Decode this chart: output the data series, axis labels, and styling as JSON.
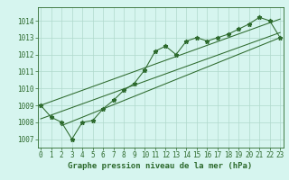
{
  "title": "Graphe pression niveau de la mer (hPa)",
  "x_values": [
    0,
    1,
    2,
    3,
    4,
    5,
    6,
    7,
    8,
    9,
    10,
    11,
    12,
    13,
    14,
    15,
    16,
    17,
    18,
    19,
    20,
    21,
    22,
    23
  ],
  "y_values": [
    1009.0,
    1008.3,
    1008.0,
    1007.0,
    1008.0,
    1008.1,
    1008.8,
    1009.3,
    1009.9,
    1010.3,
    1011.1,
    1012.2,
    1012.5,
    1012.0,
    1012.8,
    1013.0,
    1012.8,
    1013.0,
    1013.2,
    1013.5,
    1013.8,
    1014.2,
    1014.0,
    1013.0
  ],
  "trend_line_upper": [
    [
      0,
      1009.0
    ],
    [
      23,
      1014.1
    ]
  ],
  "trend_line_mid": [
    [
      0,
      1008.2
    ],
    [
      23,
      1013.3
    ]
  ],
  "trend_line_lower": [
    [
      2,
      1007.8
    ],
    [
      23,
      1013.0
    ]
  ],
  "ylim": [
    1006.5,
    1014.8
  ],
  "xlim": [
    -0.3,
    23.3
  ],
  "yticks": [
    1007,
    1008,
    1009,
    1010,
    1011,
    1012,
    1013,
    1014
  ],
  "xticks": [
    0,
    1,
    2,
    3,
    4,
    5,
    6,
    7,
    8,
    9,
    10,
    11,
    12,
    13,
    14,
    15,
    16,
    17,
    18,
    19,
    20,
    21,
    22,
    23
  ],
  "line_color": "#2d6a2d",
  "bg_color": "#d6f5ef",
  "grid_color": "#b0d9cc",
  "title_color": "#2d6a2d",
  "title_fontsize": 6.5,
  "tick_fontsize": 5.5,
  "label_color": "#2d6a2d"
}
